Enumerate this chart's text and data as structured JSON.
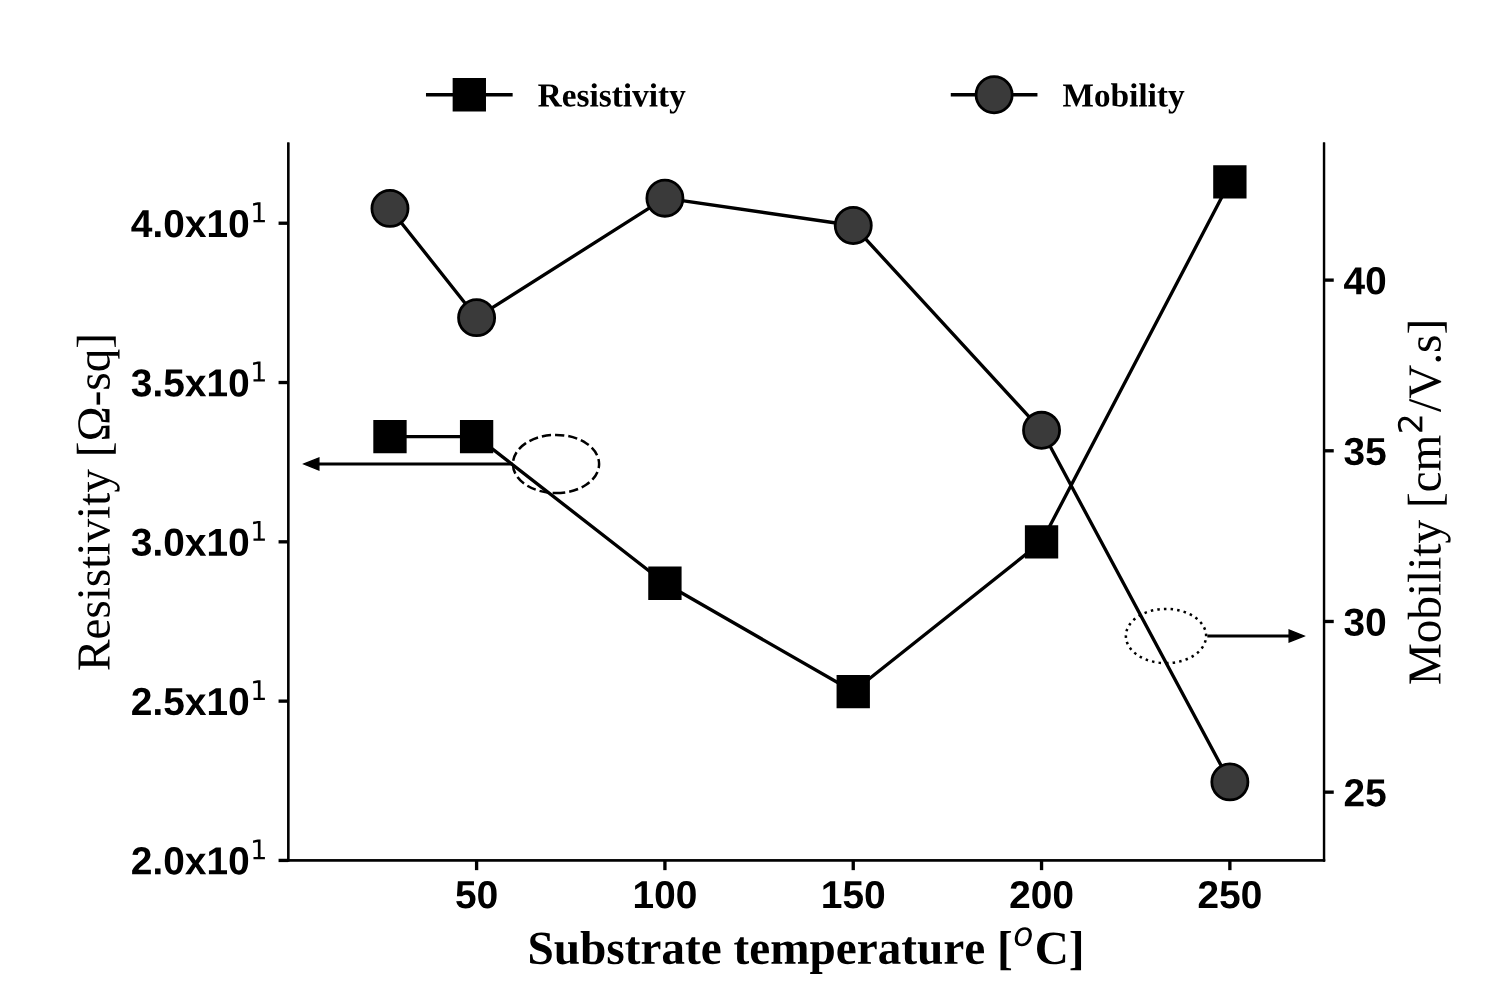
{
  "chart_data": {
    "type": "line",
    "xlabel": "Substrate temperature [$^{o}$C]",
    "ylabel": "Resistivity [Ω-sq]",
    "y2label": "Mobility [cm$^{2}$/V.s]",
    "x": [
      27,
      50,
      100,
      150,
      200,
      250
    ],
    "series": [
      {
        "name": "Resistivity",
        "color": "#000000",
        "marker": "square",
        "axis": "y",
        "values": [
          33.3,
          33.3,
          28.7,
          25.3,
          30.0,
          41.3
        ]
      },
      {
        "name": "Mobility",
        "color": "#000000",
        "marker": "circle",
        "axis": "y2",
        "values": [
          42.1,
          38.9,
          42.4,
          41.6,
          35.6,
          25.3
        ]
      }
    ],
    "xlim": [
      0,
      275
    ],
    "xticks": [
      50,
      100,
      150,
      200,
      250
    ],
    "ylim": [
      20,
      42.5
    ],
    "yticks": [
      {
        "value": 20,
        "label": "2.0x10$^{1}$"
      },
      {
        "value": 25,
        "label": "2.5x10$^{1}$"
      },
      {
        "value": 30,
        "label": "3.0x10$^{1}$"
      },
      {
        "value": 35,
        "label": "3.5x10$^{1}$"
      },
      {
        "value": 40,
        "label": "4.0x10$^{1}$"
      }
    ],
    "y2lim": [
      23.0,
      44.0
    ],
    "y2ticks": [
      25,
      30,
      35,
      40
    ],
    "legend": "top",
    "grid": false,
    "line_style": "solid"
  }
}
